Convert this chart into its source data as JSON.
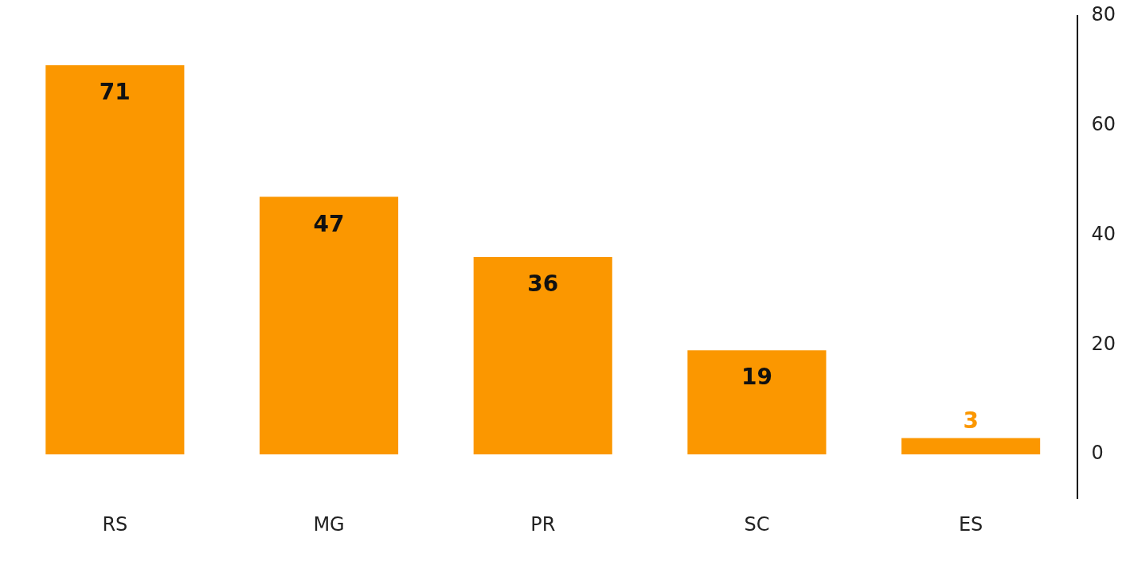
{
  "chart_data": {
    "type": "bar",
    "categories": [
      "RS",
      "MG",
      "PR",
      "SC",
      "ES"
    ],
    "values": [
      71,
      47,
      36,
      19,
      3
    ],
    "color": "#fb9700",
    "ylim": [
      -8,
      80
    ],
    "yticks": [
      0,
      20,
      40,
      60,
      80
    ],
    "grid": false,
    "legend": false,
    "data_labels": true
  }
}
